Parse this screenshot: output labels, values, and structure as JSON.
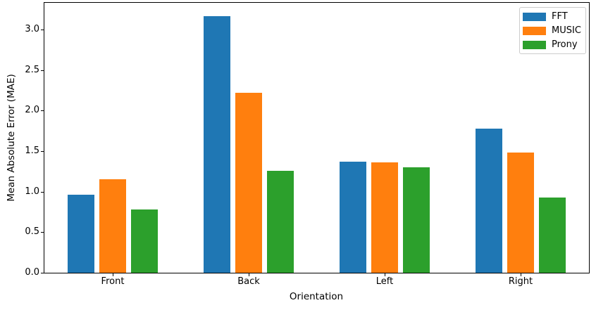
{
  "chart_data": {
    "type": "bar",
    "title": "",
    "xlabel": "Orientation",
    "ylabel": "Mean Absolute Error (MAE)",
    "categories": [
      "Front",
      "Back",
      "Left",
      "Right"
    ],
    "series": [
      {
        "name": "FFT",
        "color": "#1f77b4",
        "values": [
          0.96,
          3.17,
          1.37,
          1.78
        ]
      },
      {
        "name": "MUSIC",
        "color": "#ff7f0e",
        "values": [
          1.15,
          2.22,
          1.36,
          1.48
        ]
      },
      {
        "name": "Prony",
        "color": "#2ca02c",
        "values": [
          0.78,
          1.26,
          1.3,
          0.93
        ]
      }
    ],
    "ylim": [
      0,
      3.33
    ],
    "yticks": [
      0.0,
      0.5,
      1.0,
      1.5,
      2.0,
      2.5,
      3.0
    ],
    "ytick_labels": [
      "0.0",
      "0.5",
      "1.0",
      "1.5",
      "2.0",
      "2.5",
      "3.0"
    ],
    "legend": {
      "position": "upper right",
      "entries": [
        "FFT",
        "MUSIC",
        "Prony"
      ]
    },
    "grid": false,
    "colors": {
      "axis": "#000000",
      "legend_border": "#cccccc",
      "background": "#ffffff"
    }
  }
}
